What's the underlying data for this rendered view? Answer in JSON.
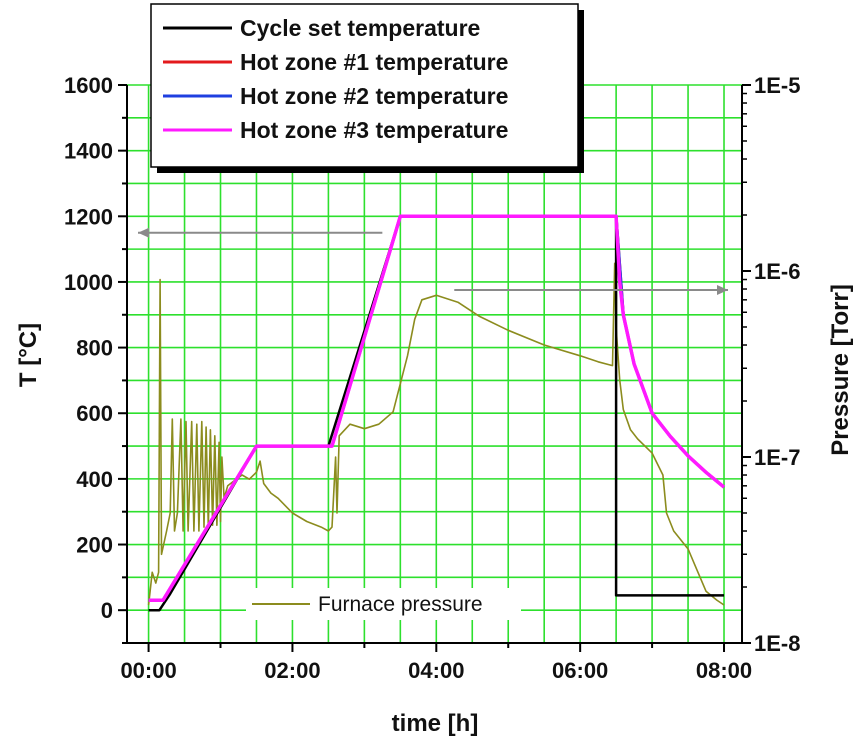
{
  "chart_data": {
    "type": "line",
    "xlabel": "time [h]",
    "ylabel": "T [°C]",
    "y2label": "Pressure [Torr]",
    "x_ticks": [
      "00:00",
      "02:00",
      "04:00",
      "06:00",
      "08:00"
    ],
    "xlim_hours": [
      -0.3,
      8.25
    ],
    "ylim": [
      -100,
      1600
    ],
    "y_ticks": [
      0,
      200,
      400,
      600,
      800,
      1000,
      1200,
      1400,
      1600
    ],
    "y2_scale": "log",
    "y2lim": [
      1e-08,
      1e-05
    ],
    "y2_ticks": [
      "1E-8",
      "1E-7",
      "1E-6",
      "1E-5"
    ],
    "grid": true,
    "grid_color": "#2de02d",
    "legend_placement": "top-left",
    "legend2_placement": "bottom-center",
    "series": [
      {
        "name": "Cycle set temperature",
        "color": "#000000",
        "axis": "left",
        "points": [
          [
            0,
            0
          ],
          [
            0.15,
            0
          ],
          [
            0.3,
            50
          ],
          [
            1.5,
            500
          ],
          [
            2.5,
            500
          ],
          [
            3.5,
            1200
          ],
          [
            6.5,
            1200
          ],
          [
            6.5,
            45
          ],
          [
            8,
            45
          ]
        ]
      },
      {
        "name": "Hot zone #1 temperature",
        "color": "#e31a1c",
        "axis": "left",
        "points": [
          [
            0,
            30
          ],
          [
            0.2,
            30
          ],
          [
            1.5,
            500
          ],
          [
            2.55,
            500
          ],
          [
            3.5,
            1200
          ],
          [
            6.5,
            1200
          ],
          [
            6.6,
            900
          ],
          [
            6.75,
            750
          ],
          [
            7,
            600
          ],
          [
            7.25,
            530
          ],
          [
            7.5,
            470
          ],
          [
            7.75,
            420
          ],
          [
            8,
            375
          ]
        ]
      },
      {
        "name": "Hot zone #2 temperature",
        "color": "#1f3fe0",
        "axis": "left",
        "points": [
          [
            0,
            30
          ],
          [
            0.2,
            30
          ],
          [
            1.5,
            500
          ],
          [
            2.55,
            500
          ],
          [
            3.5,
            1200
          ],
          [
            6.5,
            1200
          ],
          [
            6.6,
            900
          ],
          [
            6.75,
            750
          ],
          [
            7,
            600
          ],
          [
            7.25,
            530
          ],
          [
            7.5,
            470
          ],
          [
            7.75,
            420
          ],
          [
            8,
            375
          ]
        ]
      },
      {
        "name": "Hot zone #3 temperature",
        "color": "#ff1aff",
        "axis": "left",
        "points": [
          [
            0,
            30
          ],
          [
            0.2,
            30
          ],
          [
            1.5,
            500
          ],
          [
            2.55,
            500
          ],
          [
            3.5,
            1200
          ],
          [
            6.5,
            1200
          ],
          [
            6.55,
            1000
          ],
          [
            6.6,
            900
          ],
          [
            6.75,
            750
          ],
          [
            7,
            600
          ],
          [
            7.25,
            530
          ],
          [
            7.5,
            470
          ],
          [
            7.75,
            420
          ],
          [
            8,
            375
          ]
        ]
      },
      {
        "name": "Furnace pressure",
        "color": "#8c8c1e",
        "axis": "right",
        "points": [
          [
            0,
            1.6e-08
          ],
          [
            0.05,
            2.4e-08
          ],
          [
            0.1,
            2.1e-08
          ],
          [
            0.14,
            2.4e-08
          ],
          [
            0.16,
            9e-07
          ],
          [
            0.18,
            3e-08
          ],
          [
            0.25,
            4e-08
          ],
          [
            0.3,
            5e-08
          ],
          [
            0.33,
            1.6e-07
          ],
          [
            0.36,
            4e-08
          ],
          [
            0.4,
            5e-08
          ],
          [
            0.45,
            1.6e-07
          ],
          [
            0.48,
            4e-08
          ],
          [
            0.52,
            1.55e-07
          ],
          [
            0.55,
            4e-08
          ],
          [
            0.6,
            1.55e-07
          ],
          [
            0.63,
            4e-08
          ],
          [
            0.67,
            1.5e-07
          ],
          [
            0.7,
            4e-08
          ],
          [
            0.74,
            1.55e-07
          ],
          [
            0.77,
            4.2e-08
          ],
          [
            0.8,
            1.45e-07
          ],
          [
            0.83,
            4.2e-08
          ],
          [
            0.86,
            1.4e-07
          ],
          [
            0.89,
            4.3e-08
          ],
          [
            0.92,
            1.3e-07
          ],
          [
            0.95,
            4.3e-08
          ],
          [
            0.98,
            1.2e-07
          ],
          [
            1.0,
            4.5e-08
          ],
          [
            1.02,
            1e-07
          ],
          [
            1.05,
            6e-08
          ],
          [
            1.1,
            7e-08
          ],
          [
            1.2,
            7.5e-08
          ],
          [
            1.3,
            8e-08
          ],
          [
            1.4,
            7.6e-08
          ],
          [
            1.5,
            8.3e-08
          ],
          [
            1.55,
            9.5e-08
          ],
          [
            1.6,
            7.2e-08
          ],
          [
            1.7,
            6.4e-08
          ],
          [
            1.8,
            6e-08
          ],
          [
            2.0,
            5e-08
          ],
          [
            2.2,
            4.5e-08
          ],
          [
            2.4,
            4.2e-08
          ],
          [
            2.5,
            4e-08
          ],
          [
            2.55,
            4.2e-08
          ],
          [
            2.6,
            1e-07
          ],
          [
            2.62,
            5e-08
          ],
          [
            2.65,
            1.3e-07
          ],
          [
            2.8,
            1.5e-07
          ],
          [
            3.0,
            1.42e-07
          ],
          [
            3.2,
            1.5e-07
          ],
          [
            3.4,
            1.75e-07
          ],
          [
            3.6,
            3.5e-07
          ],
          [
            3.7,
            5.5e-07
          ],
          [
            3.8,
            7e-07
          ],
          [
            4.0,
            7.4e-07
          ],
          [
            4.3,
            6.8e-07
          ],
          [
            4.6,
            5.7e-07
          ],
          [
            5.0,
            4.8e-07
          ],
          [
            5.5,
            4e-07
          ],
          [
            6.0,
            3.5e-07
          ],
          [
            6.25,
            3.25e-07
          ],
          [
            6.45,
            3.1e-07
          ],
          [
            6.48,
            1.1e-06
          ],
          [
            6.5,
            5e-07
          ],
          [
            6.55,
            2.6e-07
          ],
          [
            6.6,
            1.8e-07
          ],
          [
            6.7,
            1.4e-07
          ],
          [
            6.8,
            1.25e-07
          ],
          [
            7.0,
            1.05e-07
          ],
          [
            7.15,
            8e-08
          ],
          [
            7.2,
            5e-08
          ],
          [
            7.3,
            4e-08
          ],
          [
            7.5,
            3.2e-08
          ],
          [
            7.6,
            2.6e-08
          ],
          [
            7.75,
            1.9e-08
          ],
          [
            7.9,
            1.7e-08
          ],
          [
            8.0,
            1.6e-08
          ]
        ]
      }
    ]
  }
}
